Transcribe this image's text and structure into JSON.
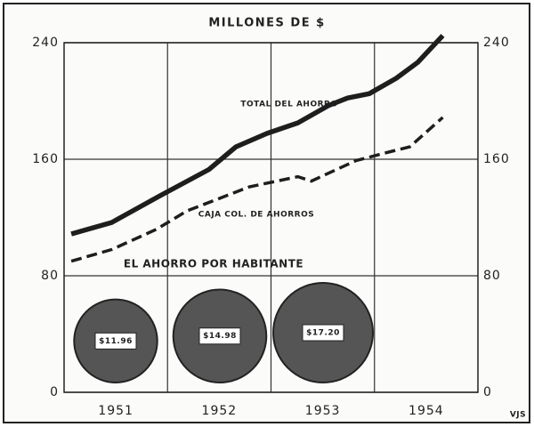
{
  "chart_data": {
    "type": "line",
    "title": "MILLONES DE $",
    "categories": [
      "1951",
      "1952",
      "1953",
      "1954"
    ],
    "xlim": [
      1951,
      1955
    ],
    "ylim": [
      0,
      240
    ],
    "yticks": [
      0,
      80,
      160,
      240
    ],
    "grid": true,
    "series": [
      {
        "name": "TOTAL DEL AHORRO",
        "color": "#1e1e1e",
        "x": [
          1951.07,
          1951.46,
          1951.93,
          1952.4,
          1952.66,
          1952.96,
          1953.26,
          1953.56,
          1953.74,
          1953.95,
          1954.21,
          1954.42,
          1954.66
        ],
        "values": [
          108.7,
          116.6,
          135,
          153,
          168.5,
          177.7,
          185,
          197,
          202,
          205,
          215.6,
          226.6,
          244.9
        ]
      },
      {
        "name": "CAJA COL. DE AHORROS",
        "color": "#1e1e1e",
        "dashed": true,
        "x": [
          1951.07,
          1951.46,
          1951.89,
          1952.19,
          1952.79,
          1953.26,
          1953.39,
          1953.82,
          1954.17,
          1954.34,
          1954.66
        ],
        "values": [
          90,
          98,
          111.8,
          124.6,
          141,
          148,
          145,
          159,
          165.5,
          168.5,
          188.7
        ]
      }
    ],
    "inset": {
      "title": "EL AHORRO POR HABITANTE",
      "type": "bubble",
      "values": [
        11.96,
        14.98,
        17.2
      ],
      "value_labels": [
        "$11.96",
        "$14.98",
        "$17.20"
      ],
      "color": "#555"
    },
    "signature": "VJS"
  }
}
